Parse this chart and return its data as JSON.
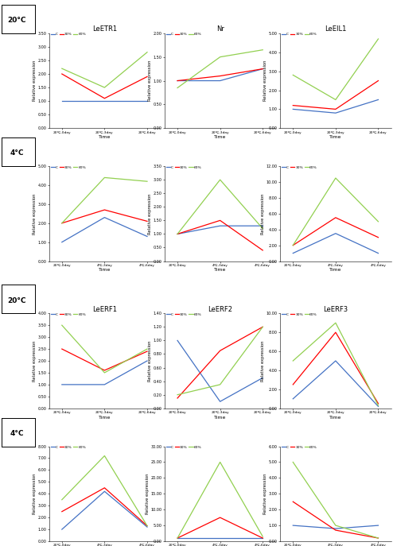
{
  "colors": {
    "C": "#4472c4",
    "30%": "#ff0000",
    "60%": "#92d050"
  },
  "legend_labels": [
    "C",
    "30%",
    "60%"
  ],
  "sections": [
    {
      "temp_label": "20°C",
      "plots": [
        {
          "title": "LeETR1",
          "xticks": [
            "20℃,0day",
            "20℃,3day",
            "20℃,6day"
          ],
          "ylim": [
            0,
            3.5
          ],
          "yticks": [
            0.0,
            0.5,
            1.0,
            1.5,
            2.0,
            2.5,
            3.0,
            3.5
          ],
          "C": [
            1.0,
            1.0,
            1.0
          ],
          "30%": [
            2.0,
            1.1,
            1.9
          ],
          "60%": [
            2.2,
            1.5,
            2.8
          ]
        },
        {
          "title": "Nr",
          "xticks": [
            "20℃,0day",
            "20℃,3day",
            "20℃,6day"
          ],
          "ylim": [
            0,
            2.0
          ],
          "yticks": [
            0.0,
            0.5,
            1.0,
            1.5,
            2.0
          ],
          "C": [
            1.0,
            1.0,
            1.25
          ],
          "30%": [
            1.0,
            1.1,
            1.25
          ],
          "60%": [
            0.85,
            1.5,
            1.65
          ]
        },
        {
          "title": "LeEIL1",
          "xticks": [
            "20℃,0day",
            "20℃,3day",
            "20℃,6day"
          ],
          "ylim": [
            0,
            5.0
          ],
          "yticks": [
            0.0,
            1.0,
            2.0,
            3.0,
            4.0,
            5.0
          ],
          "C": [
            1.0,
            0.8,
            1.5
          ],
          "30%": [
            1.2,
            1.0,
            2.5
          ],
          "60%": [
            2.8,
            1.5,
            4.7
          ]
        }
      ]
    },
    {
      "temp_label": "4°C",
      "plots": [
        {
          "title": "",
          "xticks": [
            "20℃,0day",
            "4℃,3day",
            "4℃,6day"
          ],
          "ylim": [
            0,
            5.0
          ],
          "yticks": [
            0.0,
            1.0,
            2.0,
            3.0,
            4.0,
            5.0
          ],
          "C": [
            1.0,
            2.3,
            1.3
          ],
          "30%": [
            2.0,
            2.7,
            2.1
          ],
          "60%": [
            2.0,
            4.4,
            4.2
          ]
        },
        {
          "title": "",
          "xticks": [
            "20℃,0day",
            "4℃,3day",
            "4℃,6day"
          ],
          "ylim": [
            0,
            3.5
          ],
          "yticks": [
            0.0,
            0.5,
            1.0,
            1.5,
            2.0,
            2.5,
            3.0,
            3.5
          ],
          "C": [
            1.0,
            1.3,
            1.3
          ],
          "30%": [
            1.0,
            1.5,
            0.4
          ],
          "60%": [
            1.0,
            3.0,
            1.2
          ]
        },
        {
          "title": "",
          "xticks": [
            "20℃,0day",
            "4℃,3day",
            "4℃,6day"
          ],
          "ylim": [
            0,
            12.0
          ],
          "yticks": [
            0.0,
            2.0,
            4.0,
            6.0,
            8.0,
            10.0,
            12.0
          ],
          "C": [
            1.0,
            3.5,
            1.0
          ],
          "30%": [
            2.0,
            5.5,
            3.0
          ],
          "60%": [
            2.0,
            10.5,
            5.0
          ]
        }
      ]
    },
    {
      "temp_label": "20°C",
      "plots": [
        {
          "title": "LeERF1",
          "xticks": [
            "20℃,0day",
            "20℃,3day",
            "20℃,6day"
          ],
          "ylim": [
            0,
            4.0
          ],
          "yticks": [
            0.0,
            0.5,
            1.0,
            1.5,
            2.0,
            2.5,
            3.0,
            3.5,
            4.0
          ],
          "C": [
            1.0,
            1.0,
            2.0
          ],
          "30%": [
            2.5,
            1.6,
            2.4
          ],
          "60%": [
            3.5,
            1.5,
            2.5
          ]
        },
        {
          "title": "LeERF2",
          "xticks": [
            "20℃,0day",
            "20℃,3day",
            "20℃,6day"
          ],
          "ylim": [
            0,
            1.4
          ],
          "yticks": [
            0.0,
            0.2,
            0.4,
            0.6,
            0.8,
            1.0,
            1.2,
            1.4
          ],
          "C": [
            1.0,
            0.1,
            0.45
          ],
          "30%": [
            0.15,
            0.85,
            1.2
          ],
          "60%": [
            0.2,
            0.35,
            1.2
          ]
        },
        {
          "title": "LeERF3",
          "xticks": [
            "20℃,0day",
            "20℃,3day",
            "20℃,6day"
          ],
          "ylim": [
            0,
            10.0
          ],
          "yticks": [
            0.0,
            2.0,
            4.0,
            6.0,
            8.0,
            10.0
          ],
          "C": [
            1.0,
            5.0,
            0.2
          ],
          "30%": [
            2.5,
            8.0,
            0.5
          ],
          "60%": [
            5.0,
            9.0,
            0.3
          ]
        }
      ]
    },
    {
      "temp_label": "4°C",
      "plots": [
        {
          "title": "",
          "xticks": [
            "20℃,0day",
            "4℃,3day",
            "4℃,6day"
          ],
          "ylim": [
            0,
            8.0
          ],
          "yticks": [
            0.0,
            1.0,
            2.0,
            3.0,
            4.0,
            5.0,
            6.0,
            7.0,
            8.0
          ],
          "C": [
            1.0,
            4.2,
            1.2
          ],
          "30%": [
            2.5,
            4.5,
            1.3
          ],
          "60%": [
            3.5,
            7.2,
            1.3
          ]
        },
        {
          "title": "",
          "xticks": [
            "20℃,0day",
            "4℃,3day",
            "4℃,6day"
          ],
          "ylim": [
            0,
            30.0
          ],
          "yticks": [
            0.0,
            5.0,
            10.0,
            15.0,
            20.0,
            25.0,
            30.0
          ],
          "C": [
            1.0,
            1.0,
            1.0
          ],
          "30%": [
            1.0,
            7.5,
            1.0
          ],
          "60%": [
            1.0,
            25.0,
            1.5
          ]
        },
        {
          "title": "",
          "xticks": [
            "20℃,0day",
            "4℃,3day",
            "4℃,6day"
          ],
          "ylim": [
            0,
            6.0
          ],
          "yticks": [
            0.0,
            1.0,
            2.0,
            3.0,
            4.0,
            5.0,
            6.0
          ],
          "C": [
            1.0,
            0.8,
            1.0
          ],
          "30%": [
            2.5,
            0.7,
            0.2
          ],
          "60%": [
            5.0,
            1.0,
            0.2
          ]
        }
      ]
    }
  ]
}
